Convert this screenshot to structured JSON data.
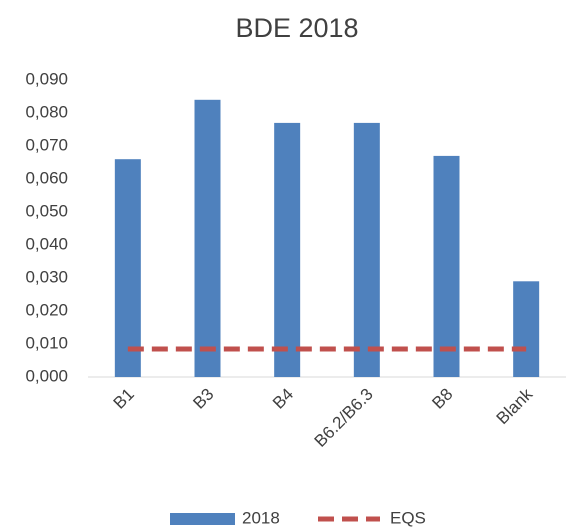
{
  "chart_data": {
    "type": "bar",
    "title": "BDE 2018",
    "categories": [
      "B1",
      "B3",
      "B4",
      "B6.2/B6.3",
      "B8",
      "Blank"
    ],
    "series": [
      {
        "name": "2018",
        "color": "#4f81bd",
        "type": "bar",
        "values": [
          0.066,
          0.084,
          0.077,
          0.077,
          0.067,
          0.029
        ]
      },
      {
        "name": "EQS",
        "color": "#c0504d",
        "type": "line",
        "dashed": true,
        "values": [
          0.0085,
          0.0085,
          0.0085,
          0.0085,
          0.0085,
          0.0085
        ]
      }
    ],
    "ylim": [
      0,
      0.09
    ],
    "yticks": [
      {
        "value": 0,
        "label": "0,000"
      },
      {
        "value": 0.01,
        "label": "0,010"
      },
      {
        "value": 0.02,
        "label": "0,020"
      },
      {
        "value": 0.03,
        "label": "0,030"
      },
      {
        "value": 0.04,
        "label": "0,040"
      },
      {
        "value": 0.05,
        "label": "0,050"
      },
      {
        "value": 0.06,
        "label": "0,060"
      },
      {
        "value": 0.07,
        "label": "0,070"
      },
      {
        "value": 0.08,
        "label": "0,080"
      },
      {
        "value": 0.09,
        "label": "0,090"
      }
    ],
    "grid": false,
    "legend": "bottom"
  }
}
